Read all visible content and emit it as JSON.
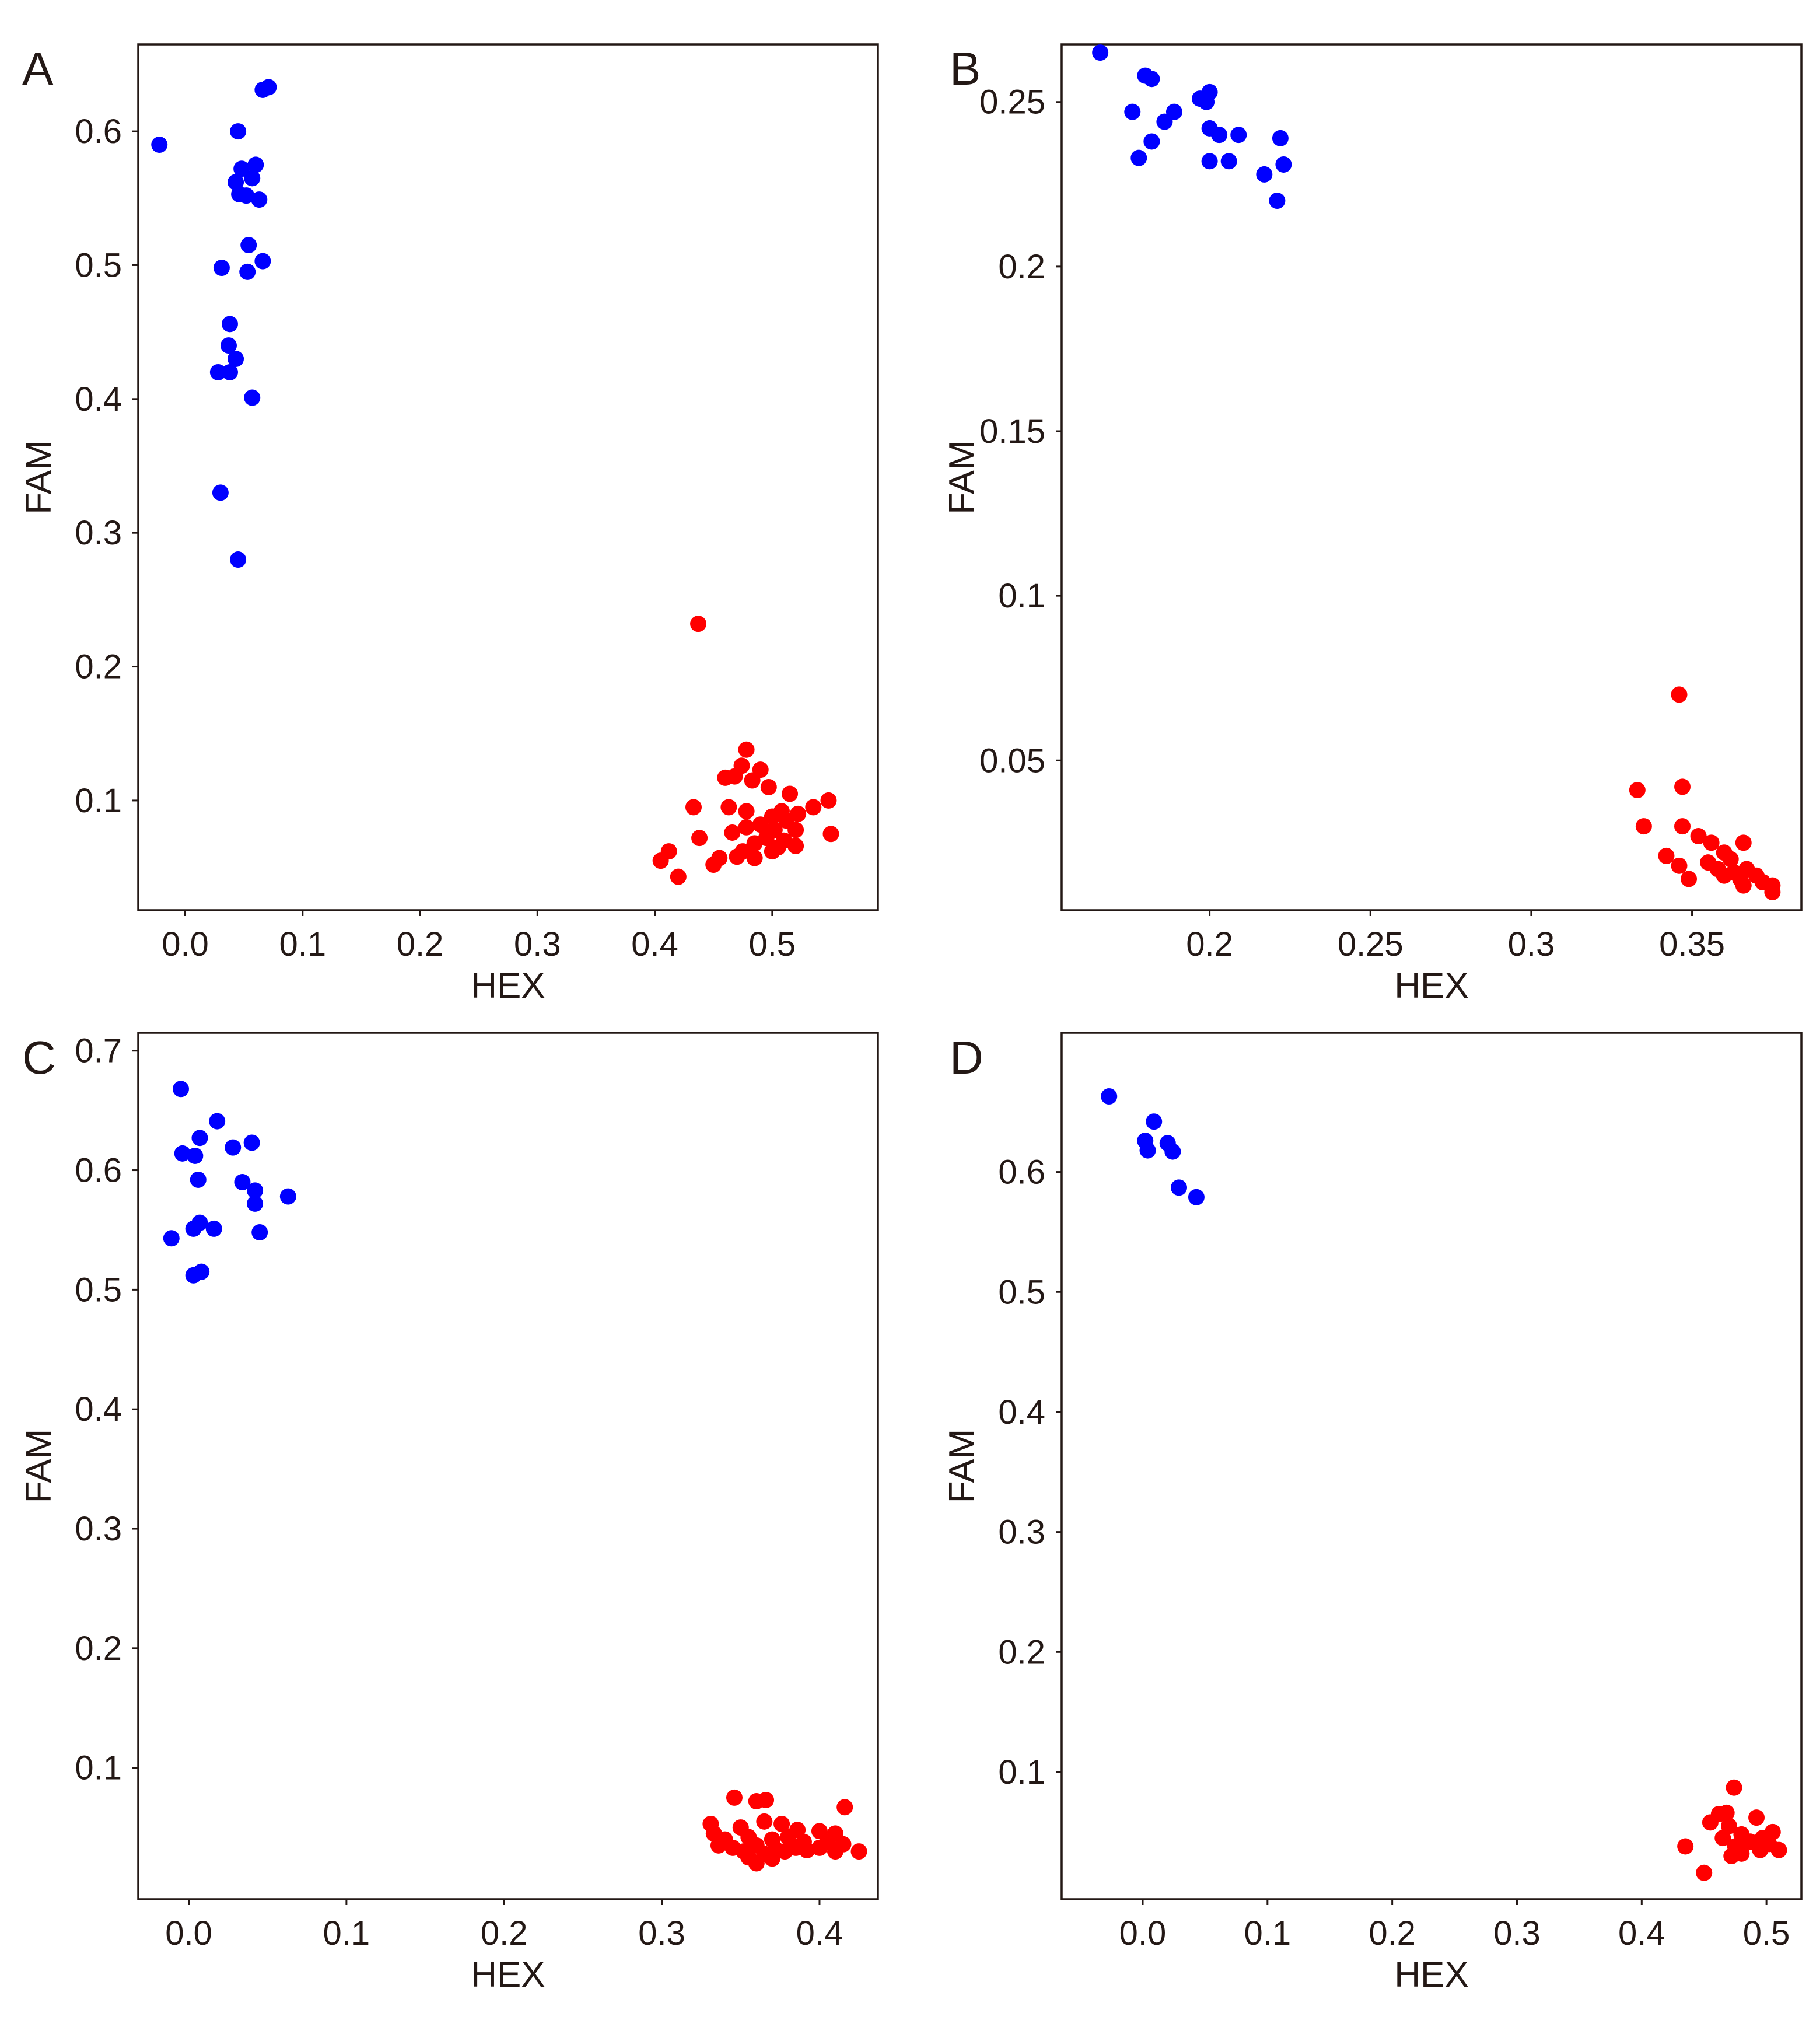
{
  "figure": {
    "title": ""
  },
  "colors": {
    "blue": "#0000ff",
    "red": "#ff0000",
    "axis": "#231815"
  },
  "chart_data": [
    {
      "panel": "A",
      "type": "scatter",
      "xlabel": "HEX",
      "ylabel": "FAM",
      "xlim": [
        -0.04,
        0.59
      ],
      "ylim": [
        0.018,
        0.665
      ],
      "xticks": [
        0.0,
        0.1,
        0.2,
        0.3,
        0.4,
        0.5
      ],
      "xtick_labels": [
        "0.0",
        "0.1",
        "0.2",
        "0.3",
        "0.4",
        "0.5"
      ],
      "yticks": [
        0.1,
        0.2,
        0.3,
        0.4,
        0.5,
        0.6
      ],
      "ytick_labels": [
        "0.1",
        "0.2",
        "0.3",
        "0.4",
        "0.5",
        "0.6"
      ],
      "grid": false,
      "series": [
        {
          "name": "blue cluster",
          "color": "#0000ff",
          "points": [
            [
              -0.022,
              0.59
            ],
            [
              0.066,
              0.631
            ],
            [
              0.071,
              0.633
            ],
            [
              0.045,
              0.6
            ],
            [
              0.048,
              0.572
            ],
            [
              0.06,
              0.575
            ],
            [
              0.043,
              0.562
            ],
            [
              0.046,
              0.553
            ],
            [
              0.052,
              0.552
            ],
            [
              0.057,
              0.565
            ],
            [
              0.063,
              0.549
            ],
            [
              0.054,
              0.515
            ],
            [
              0.031,
              0.498
            ],
            [
              0.053,
              0.495
            ],
            [
              0.066,
              0.503
            ],
            [
              0.038,
              0.456
            ],
            [
              0.037,
              0.44
            ],
            [
              0.043,
              0.43
            ],
            [
              0.028,
              0.42
            ],
            [
              0.038,
              0.42
            ],
            [
              0.057,
              0.401
            ],
            [
              0.03,
              0.33
            ],
            [
              0.045,
              0.28
            ]
          ]
        },
        {
          "name": "red cluster",
          "color": "#ff0000",
          "points": [
            [
              0.437,
              0.232
            ],
            [
              0.478,
              0.138
            ],
            [
              0.474,
              0.126
            ],
            [
              0.49,
              0.123
            ],
            [
              0.468,
              0.118
            ],
            [
              0.483,
              0.115
            ],
            [
              0.46,
              0.117
            ],
            [
              0.497,
              0.11
            ],
            [
              0.515,
              0.105
            ],
            [
              0.548,
              0.1
            ],
            [
              0.535,
              0.095
            ],
            [
              0.433,
              0.095
            ],
            [
              0.463,
              0.095
            ],
            [
              0.478,
              0.092
            ],
            [
              0.508,
              0.092
            ],
            [
              0.522,
              0.09
            ],
            [
              0.5,
              0.088
            ],
            [
              0.512,
              0.085
            ],
            [
              0.49,
              0.082
            ],
            [
              0.478,
              0.08
            ],
            [
              0.502,
              0.078
            ],
            [
              0.52,
              0.078
            ],
            [
              0.466,
              0.076
            ],
            [
              0.55,
              0.075
            ],
            [
              0.438,
              0.072
            ],
            [
              0.495,
              0.072
            ],
            [
              0.51,
              0.07
            ],
            [
              0.485,
              0.068
            ],
            [
              0.505,
              0.065
            ],
            [
              0.52,
              0.066
            ],
            [
              0.475,
              0.062
            ],
            [
              0.5,
              0.062
            ],
            [
              0.412,
              0.062
            ],
            [
              0.47,
              0.058
            ],
            [
              0.455,
              0.057
            ],
            [
              0.485,
              0.057
            ],
            [
              0.405,
              0.055
            ],
            [
              0.45,
              0.052
            ],
            [
              0.42,
              0.043
            ]
          ]
        }
      ]
    },
    {
      "panel": "B",
      "type": "scatter",
      "xlabel": "HEX",
      "ylabel": "FAM",
      "xlim": [
        0.154,
        0.384
      ],
      "ylim": [
        0.0045,
        0.2675
      ],
      "xticks": [
        0.2,
        0.25,
        0.3,
        0.35
      ],
      "xtick_labels": [
        "0.2",
        "0.25",
        "0.3",
        "0.35"
      ],
      "yticks": [
        0.05,
        0.1,
        0.15,
        0.2,
        0.25
      ],
      "ytick_labels": [
        "0.05",
        "0.1",
        "0.15",
        "0.2",
        "0.25"
      ],
      "grid": false,
      "series": [
        {
          "name": "blue cluster",
          "color": "#0000ff",
          "points": [
            [
              0.166,
              0.265
            ],
            [
              0.18,
              0.258
            ],
            [
              0.182,
              0.257
            ],
            [
              0.2,
              0.253
            ],
            [
              0.197,
              0.251
            ],
            [
              0.199,
              0.25
            ],
            [
              0.176,
              0.247
            ],
            [
              0.189,
              0.247
            ],
            [
              0.186,
              0.244
            ],
            [
              0.2,
              0.242
            ],
            [
              0.203,
              0.24
            ],
            [
              0.209,
              0.24
            ],
            [
              0.222,
              0.239
            ],
            [
              0.182,
              0.238
            ],
            [
              0.178,
              0.233
            ],
            [
              0.2,
              0.232
            ],
            [
              0.206,
              0.232
            ],
            [
              0.223,
              0.231
            ],
            [
              0.217,
              0.228
            ],
            [
              0.221,
              0.22
            ]
          ]
        },
        {
          "name": "red cluster",
          "color": "#ff0000",
          "points": [
            [
              0.346,
              0.07
            ],
            [
              0.347,
              0.042
            ],
            [
              0.333,
              0.041
            ],
            [
              0.335,
              0.03
            ],
            [
              0.347,
              0.03
            ],
            [
              0.352,
              0.027
            ],
            [
              0.356,
              0.025
            ],
            [
              0.36,
              0.022
            ],
            [
              0.366,
              0.025
            ],
            [
              0.342,
              0.021
            ],
            [
              0.362,
              0.02
            ],
            [
              0.346,
              0.018
            ],
            [
              0.355,
              0.019
            ],
            [
              0.358,
              0.017
            ],
            [
              0.363,
              0.016
            ],
            [
              0.367,
              0.017
            ],
            [
              0.37,
              0.015
            ],
            [
              0.36,
              0.015
            ],
            [
              0.365,
              0.014
            ],
            [
              0.349,
              0.014
            ],
            [
              0.372,
              0.013
            ],
            [
              0.366,
              0.012
            ],
            [
              0.375,
              0.012
            ],
            [
              0.375,
              0.01
            ]
          ]
        }
      ]
    },
    {
      "panel": "C",
      "type": "scatter",
      "xlabel": "HEX",
      "ylabel": "FAM",
      "xlim": [
        -0.032,
        0.437
      ],
      "ylim": [
        -0.01,
        0.715
      ],
      "xticks": [
        0.0,
        0.1,
        0.2,
        0.3,
        0.4
      ],
      "xtick_labels": [
        "0.0",
        "0.1",
        "0.2",
        "0.3",
        "0.4"
      ],
      "yticks": [
        0.1,
        0.2,
        0.3,
        0.4,
        0.5,
        0.6,
        0.7
      ],
      "ytick_labels": [
        "0.1",
        "0.2",
        "0.3",
        "0.4",
        "0.5",
        "0.6",
        "0.7"
      ],
      "grid": false,
      "series": [
        {
          "name": "blue cluster",
          "color": "#0000ff",
          "points": [
            [
              -0.005,
              0.668
            ],
            [
              0.018,
              0.641
            ],
            [
              0.007,
              0.627
            ],
            [
              0.04,
              0.623
            ],
            [
              0.028,
              0.619
            ],
            [
              -0.004,
              0.614
            ],
            [
              0.004,
              0.612
            ],
            [
              0.034,
              0.59
            ],
            [
              0.006,
              0.592
            ],
            [
              0.042,
              0.583
            ],
            [
              0.063,
              0.578
            ],
            [
              0.042,
              0.572
            ],
            [
              0.007,
              0.556
            ],
            [
              0.003,
              0.551
            ],
            [
              0.016,
              0.551
            ],
            [
              0.045,
              0.548
            ],
            [
              -0.011,
              0.543
            ],
            [
              0.008,
              0.515
            ],
            [
              0.003,
              0.512
            ]
          ]
        },
        {
          "name": "red cluster",
          "color": "#ff0000",
          "points": [
            [
              0.346,
              0.075
            ],
            [
              0.36,
              0.072
            ],
            [
              0.366,
              0.073
            ],
            [
              0.416,
              0.067
            ],
            [
              0.331,
              0.053
            ],
            [
              0.376,
              0.053
            ],
            [
              0.35,
              0.05
            ],
            [
              0.365,
              0.055
            ],
            [
              0.386,
              0.048
            ],
            [
              0.4,
              0.047
            ],
            [
              0.41,
              0.045
            ],
            [
              0.333,
              0.045
            ],
            [
              0.34,
              0.04
            ],
            [
              0.355,
              0.042
            ],
            [
              0.37,
              0.04
            ],
            [
              0.38,
              0.042
            ],
            [
              0.39,
              0.038
            ],
            [
              0.405,
              0.038
            ],
            [
              0.336,
              0.035
            ],
            [
              0.345,
              0.033
            ],
            [
              0.36,
              0.035
            ],
            [
              0.372,
              0.032
            ],
            [
              0.385,
              0.033
            ],
            [
              0.4,
              0.033
            ],
            [
              0.415,
              0.036
            ],
            [
              0.352,
              0.03
            ],
            [
              0.365,
              0.028
            ],
            [
              0.378,
              0.03
            ],
            [
              0.392,
              0.031
            ],
            [
              0.41,
              0.03
            ],
            [
              0.425,
              0.03
            ],
            [
              0.355,
              0.025
            ],
            [
              0.37,
              0.024
            ],
            [
              0.36,
              0.02
            ]
          ]
        }
      ]
    },
    {
      "panel": "D",
      "type": "scatter",
      "xlabel": "HEX",
      "ylabel": "FAM",
      "xlim": [
        -0.065,
        0.528
      ],
      "ylim": [
        -0.006,
        0.716
      ],
      "xticks": [
        0.0,
        0.1,
        0.2,
        0.3,
        0.4,
        0.5
      ],
      "xtick_labels": [
        "0.0",
        "0.1",
        "0.2",
        "0.3",
        "0.4",
        "0.5"
      ],
      "yticks": [
        0.1,
        0.2,
        0.3,
        0.4,
        0.5,
        0.6
      ],
      "ytick_labels": [
        "0.1",
        "0.2",
        "0.3",
        "0.4",
        "0.5",
        "0.6"
      ],
      "grid": false,
      "series": [
        {
          "name": "blue cluster",
          "color": "#0000ff",
          "points": [
            [
              -0.027,
              0.663
            ],
            [
              0.009,
              0.642
            ],
            [
              0.002,
              0.626
            ],
            [
              0.02,
              0.624
            ],
            [
              0.004,
              0.618
            ],
            [
              0.024,
              0.617
            ],
            [
              0.029,
              0.587
            ],
            [
              0.043,
              0.579
            ]
          ]
        },
        {
          "name": "red cluster",
          "color": "#ff0000",
          "points": [
            [
              0.474,
              0.087
            ],
            [
              0.462,
              0.065
            ],
            [
              0.468,
              0.066
            ],
            [
              0.492,
              0.062
            ],
            [
              0.455,
              0.058
            ],
            [
              0.47,
              0.055
            ],
            [
              0.505,
              0.05
            ],
            [
              0.48,
              0.048
            ],
            [
              0.465,
              0.045
            ],
            [
              0.497,
              0.045
            ],
            [
              0.487,
              0.042
            ],
            [
              0.435,
              0.038
            ],
            [
              0.475,
              0.038
            ],
            [
              0.502,
              0.04
            ],
            [
              0.51,
              0.035
            ],
            [
              0.48,
              0.032
            ],
            [
              0.495,
              0.035
            ],
            [
              0.472,
              0.03
            ],
            [
              0.45,
              0.016
            ]
          ]
        }
      ]
    }
  ]
}
